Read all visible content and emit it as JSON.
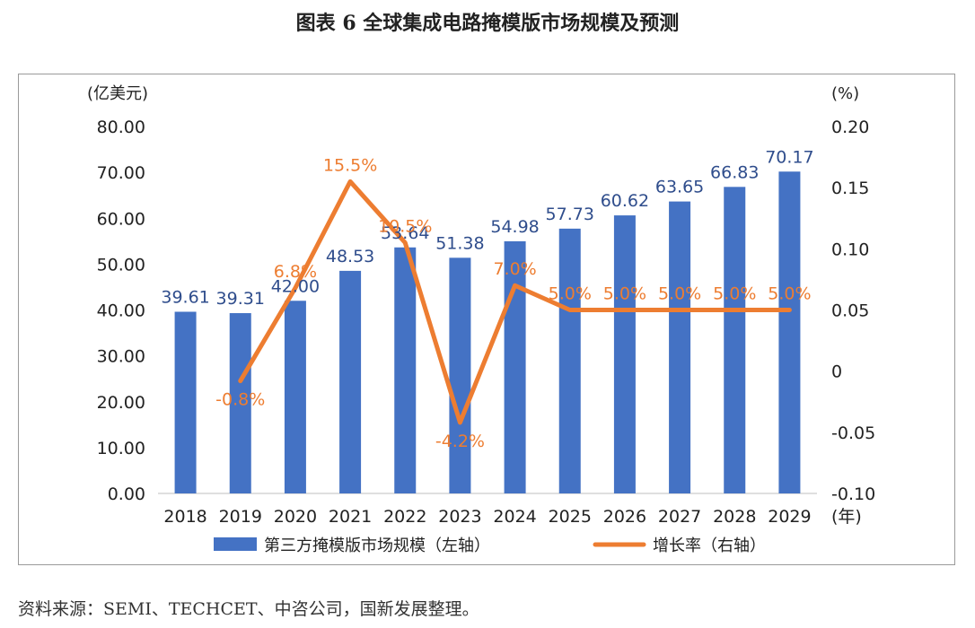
{
  "figure": {
    "title": "图表 6  全球集成电路掩模版市场规模及预测",
    "source": "资料来源：SEMI、TECHCET、中咨公司，国新发展整理。"
  },
  "chart_data": {
    "type": "bar",
    "categories": [
      "2018",
      "2019",
      "2020",
      "2021",
      "2022",
      "2023",
      "2024",
      "2025",
      "2026",
      "2027",
      "2028",
      "2029"
    ],
    "series": [
      {
        "name": "第三方掩模版市场规模（左轴）",
        "type": "bar",
        "axis": "left",
        "color": "#4472C4",
        "values": [
          39.61,
          39.31,
          42.0,
          48.53,
          53.64,
          51.38,
          54.98,
          57.73,
          60.62,
          63.65,
          66.83,
          70.17
        ],
        "labels": [
          "39.61",
          "39.31",
          "42.00",
          "48.53",
          "53.64",
          "51.38",
          "54.98",
          "57.73",
          "60.62",
          "63.65",
          "66.83",
          "70.17"
        ],
        "label_color": "#2F4D8C"
      },
      {
        "name": "增长率（右轴）",
        "type": "line",
        "axis": "right",
        "color": "#ED7D31",
        "values": [
          null,
          -0.008,
          0.068,
          0.155,
          0.105,
          -0.042,
          0.07,
          0.05,
          0.05,
          0.05,
          0.05,
          0.05
        ],
        "labels": [
          null,
          "-0.8%",
          "6.8%",
          "15.5%",
          "10.5%",
          "-4.2%",
          "7.0%",
          "5.0%",
          "5.0%",
          "5.0%",
          "5.0%",
          "5.0%"
        ]
      }
    ],
    "left_axis": {
      "unit": "(亿美元)",
      "ylim": [
        0,
        80
      ],
      "ticks": [
        0,
        10,
        20,
        30,
        40,
        50,
        60,
        70,
        80
      ],
      "tick_labels": [
        "0.00",
        "10.00",
        "20.00",
        "30.00",
        "40.00",
        "50.00",
        "60.00",
        "70.00",
        "80.00"
      ]
    },
    "right_axis": {
      "unit": "(%)",
      "ylim": [
        -0.1,
        0.2
      ],
      "ticks": [
        -0.1,
        -0.05,
        0,
        0.05,
        0.1,
        0.15,
        0.2
      ],
      "tick_labels": [
        "-0.10",
        "-0.05",
        "0",
        "0.05",
        "0.10",
        "0.15",
        "0.20"
      ]
    },
    "x_unit": "(年)",
    "grid": false,
    "legend_position": "bottom"
  }
}
